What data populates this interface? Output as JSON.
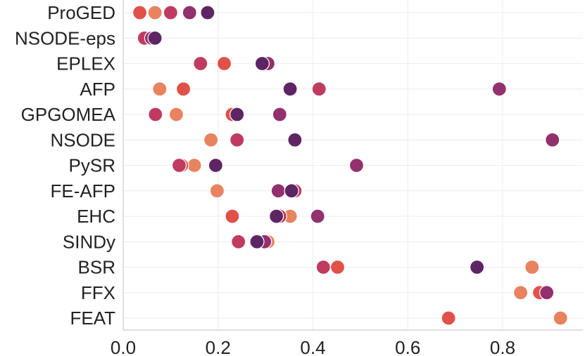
{
  "chart_data": {
    "type": "scatter",
    "title": "",
    "xlabel": "",
    "ylabel": "",
    "xlim": [
      0.0,
      0.93
    ],
    "grid": true,
    "legend": "none",
    "x_ticks": [
      "0.0",
      "0.2",
      "0.4",
      "0.6",
      "0.8"
    ],
    "x_tick_values": [
      0.0,
      0.2,
      0.4,
      0.6,
      0.8
    ],
    "categories": [
      "ProGED",
      "NSODE-eps",
      "EPLEX",
      "AFP",
      "GPGOMEA",
      "NSODE",
      "PySR",
      "FE-AFP",
      "EHC",
      "SINDy",
      "BSR",
      "FFX",
      "FEAT"
    ],
    "palette": [
      "#e8825f",
      "#e0514a",
      "#c03b60",
      "#93306e",
      "#5e2565"
    ],
    "series": [
      {
        "color": "#e8825f",
        "values": [
          0.067,
          0.055,
          null,
          0.077,
          0.112,
          0.185,
          0.15,
          0.198,
          0.352,
          0.305,
          0.862,
          0.838,
          0.922
        ]
      },
      {
        "color": "#e0514a",
        "values": [
          0.035,
          null,
          0.213,
          0.127,
          0.23,
          null,
          0.123,
          null,
          0.23,
          null,
          0.452,
          0.878,
          0.686
        ]
      },
      {
        "color": "#c03b60",
        "values": [
          0.1,
          0.045,
          0.163,
          0.413,
          0.068,
          0.24,
          0.118,
          0.362,
          0.33,
          0.243,
          0.422,
          null,
          null
        ]
      },
      {
        "color": "#93306e",
        "values": [
          0.14,
          0.06,
          0.305,
          0.793,
          0.33,
          0.905,
          0.492,
          0.327,
          0.41,
          0.298,
          null,
          0.893,
          null
        ]
      },
      {
        "color": "#5e2565",
        "values": [
          0.178,
          0.067,
          0.293,
          0.352,
          0.24,
          0.362,
          0.195,
          0.355,
          0.323,
          0.282,
          0.746,
          null,
          null
        ]
      }
    ]
  }
}
